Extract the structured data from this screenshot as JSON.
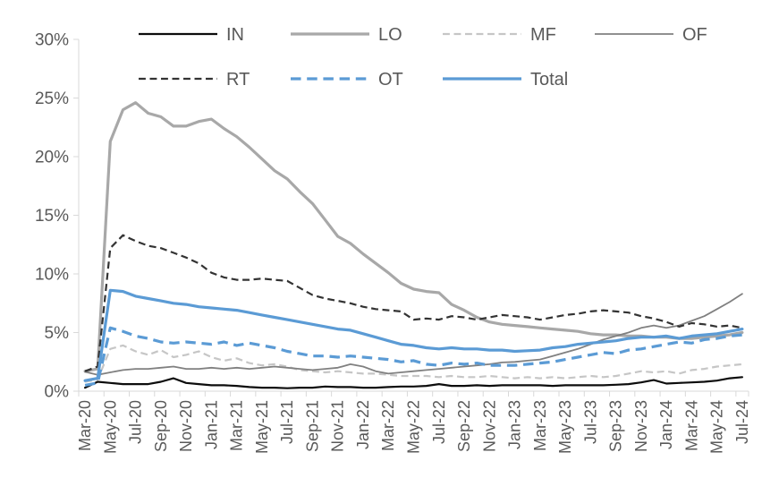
{
  "chart_data": {
    "type": "line",
    "title": "",
    "xlabel": "",
    "ylabel": "",
    "ylim": [
      0,
      30
    ],
    "ytick_step": 5,
    "ytick_labels": [
      "0%",
      "5%",
      "10%",
      "15%",
      "20%",
      "25%",
      "30%"
    ],
    "grid": false,
    "legend_position": "top",
    "axis_color": "#d9d9d9",
    "label_color": "#595959",
    "x_label_every": 2,
    "x": [
      "Mar-20",
      "Apr-20",
      "May-20",
      "Jun-20",
      "Jul-20",
      "Aug-20",
      "Sep-20",
      "Oct-20",
      "Nov-20",
      "Dec-20",
      "Jan-21",
      "Feb-21",
      "Mar-21",
      "Apr-21",
      "May-21",
      "Jun-21",
      "Jul-21",
      "Aug-21",
      "Sep-21",
      "Oct-21",
      "Nov-21",
      "Dec-21",
      "Jan-22",
      "Feb-22",
      "Mar-22",
      "Apr-22",
      "May-22",
      "Jun-22",
      "Jul-22",
      "Aug-22",
      "Sep-22",
      "Oct-22",
      "Nov-22",
      "Dec-22",
      "Jan-23",
      "Feb-23",
      "Mar-23",
      "Apr-23",
      "May-23",
      "Jun-23",
      "Jul-23",
      "Aug-23",
      "Sep-23",
      "Oct-23",
      "Nov-23",
      "Dec-23",
      "Jan-24",
      "Feb-24",
      "Mar-24",
      "Apr-24",
      "May-24",
      "Jun-24",
      "Jul-24"
    ],
    "series": [
      {
        "name": "IN",
        "color": "#0d0d0d",
        "line_style": "solid",
        "width": 2.2,
        "values": [
          0.3,
          0.8,
          0.7,
          0.6,
          0.6,
          0.6,
          0.8,
          1.1,
          0.7,
          0.6,
          0.5,
          0.5,
          0.45,
          0.35,
          0.3,
          0.3,
          0.25,
          0.3,
          0.3,
          0.4,
          0.35,
          0.35,
          0.3,
          0.3,
          0.35,
          0.4,
          0.4,
          0.45,
          0.6,
          0.45,
          0.45,
          0.5,
          0.45,
          0.5,
          0.5,
          0.5,
          0.5,
          0.45,
          0.5,
          0.5,
          0.5,
          0.5,
          0.55,
          0.6,
          0.75,
          0.95,
          0.65,
          0.7,
          0.75,
          0.8,
          0.9,
          1.1,
          1.2
        ]
      },
      {
        "name": "LO",
        "color": "#a8a8a8",
        "line_style": "solid",
        "width": 3.2,
        "values": [
          1.7,
          1.9,
          21.3,
          24.0,
          24.6,
          23.7,
          23.4,
          22.6,
          22.6,
          23.0,
          23.2,
          22.4,
          21.7,
          20.8,
          19.8,
          18.8,
          18.1,
          17.0,
          16.0,
          14.6,
          13.2,
          12.6,
          11.7,
          10.9,
          10.1,
          9.2,
          8.7,
          8.5,
          8.4,
          7.4,
          6.9,
          6.3,
          5.9,
          5.7,
          5.6,
          5.5,
          5.4,
          5.3,
          5.2,
          5.1,
          4.9,
          4.8,
          4.8,
          4.7,
          4.7,
          4.6,
          4.6,
          4.5,
          4.5,
          4.6,
          4.7,
          4.8,
          5.0
        ]
      },
      {
        "name": "MF",
        "color": "#c6c6c6",
        "line_style": "dashed",
        "width": 2.2,
        "values": [
          0.8,
          1.0,
          3.6,
          3.9,
          3.4,
          3.1,
          3.5,
          2.9,
          3.1,
          3.4,
          2.9,
          2.6,
          2.8,
          2.4,
          2.2,
          2.3,
          2.1,
          1.8,
          1.7,
          1.6,
          1.7,
          1.6,
          1.5,
          1.5,
          1.4,
          1.3,
          1.3,
          1.3,
          1.2,
          1.3,
          1.2,
          1.2,
          1.3,
          1.2,
          1.1,
          1.2,
          1.1,
          1.2,
          1.1,
          1.2,
          1.3,
          1.2,
          1.3,
          1.5,
          1.7,
          1.6,
          1.7,
          1.5,
          1.8,
          1.9,
          2.1,
          2.2,
          2.3
        ]
      },
      {
        "name": "OF",
        "color": "#808080",
        "line_style": "solid",
        "width": 1.8,
        "values": [
          1.65,
          1.4,
          1.6,
          1.8,
          1.9,
          1.9,
          2.0,
          2.1,
          1.9,
          1.9,
          2.0,
          1.9,
          2.0,
          1.9,
          2.0,
          2.1,
          2.0,
          1.9,
          1.8,
          1.9,
          2.0,
          2.3,
          2.1,
          1.7,
          1.5,
          1.6,
          1.7,
          1.8,
          1.9,
          2.0,
          2.1,
          2.2,
          2.3,
          2.45,
          2.5,
          2.6,
          2.7,
          3.0,
          3.3,
          3.6,
          4.0,
          4.4,
          4.7,
          5.0,
          5.4,
          5.6,
          5.4,
          5.6,
          6.0,
          6.4,
          7.0,
          7.6,
          8.3
        ]
      },
      {
        "name": "RT",
        "color": "#333333",
        "line_style": "dashed",
        "width": 2.2,
        "values": [
          1.7,
          2.1,
          12.2,
          13.3,
          12.8,
          12.4,
          12.2,
          11.8,
          11.4,
          10.9,
          10.1,
          9.7,
          9.5,
          9.5,
          9.6,
          9.5,
          9.4,
          8.8,
          8.2,
          7.9,
          7.7,
          7.5,
          7.2,
          7.0,
          6.9,
          6.8,
          6.1,
          6.2,
          6.1,
          6.4,
          6.3,
          6.1,
          6.3,
          6.5,
          6.4,
          6.3,
          6.1,
          6.3,
          6.5,
          6.6,
          6.8,
          6.9,
          6.8,
          6.7,
          6.4,
          6.2,
          5.9,
          5.5,
          5.8,
          5.7,
          5.5,
          5.6,
          5.4
        ]
      },
      {
        "name": "OT",
        "color": "#5b9bd5",
        "line_style": "dashed",
        "width": 3.2,
        "values": [
          0.5,
          0.7,
          5.4,
          5.1,
          4.7,
          4.5,
          4.2,
          4.1,
          4.2,
          4.1,
          4.0,
          4.2,
          3.9,
          4.1,
          3.9,
          3.7,
          3.4,
          3.2,
          3.0,
          3.0,
          2.9,
          3.0,
          2.9,
          2.8,
          2.7,
          2.5,
          2.6,
          2.3,
          2.2,
          2.4,
          2.3,
          2.4,
          2.2,
          2.2,
          2.2,
          2.3,
          2.4,
          2.5,
          2.7,
          2.9,
          3.1,
          3.3,
          3.2,
          3.5,
          3.6,
          3.8,
          4.0,
          4.2,
          4.1,
          4.4,
          4.5,
          4.7,
          4.8
        ]
      },
      {
        "name": "Total",
        "color": "#5b9bd5",
        "line_style": "solid",
        "width": 3.2,
        "values": [
          0.9,
          1.1,
          8.6,
          8.5,
          8.1,
          7.9,
          7.7,
          7.5,
          7.4,
          7.2,
          7.1,
          7.0,
          6.9,
          6.7,
          6.5,
          6.3,
          6.1,
          5.9,
          5.7,
          5.5,
          5.3,
          5.2,
          4.9,
          4.6,
          4.3,
          4.0,
          3.9,
          3.7,
          3.6,
          3.7,
          3.6,
          3.6,
          3.5,
          3.5,
          3.4,
          3.45,
          3.5,
          3.7,
          3.8,
          4.0,
          4.1,
          4.2,
          4.3,
          4.5,
          4.6,
          4.6,
          4.7,
          4.5,
          4.7,
          4.8,
          4.9,
          5.1,
          5.3
        ]
      }
    ],
    "legend_rows": [
      [
        "IN",
        "LO",
        "MF",
        "OF"
      ],
      [
        "RT",
        "OT",
        "Total"
      ]
    ]
  }
}
